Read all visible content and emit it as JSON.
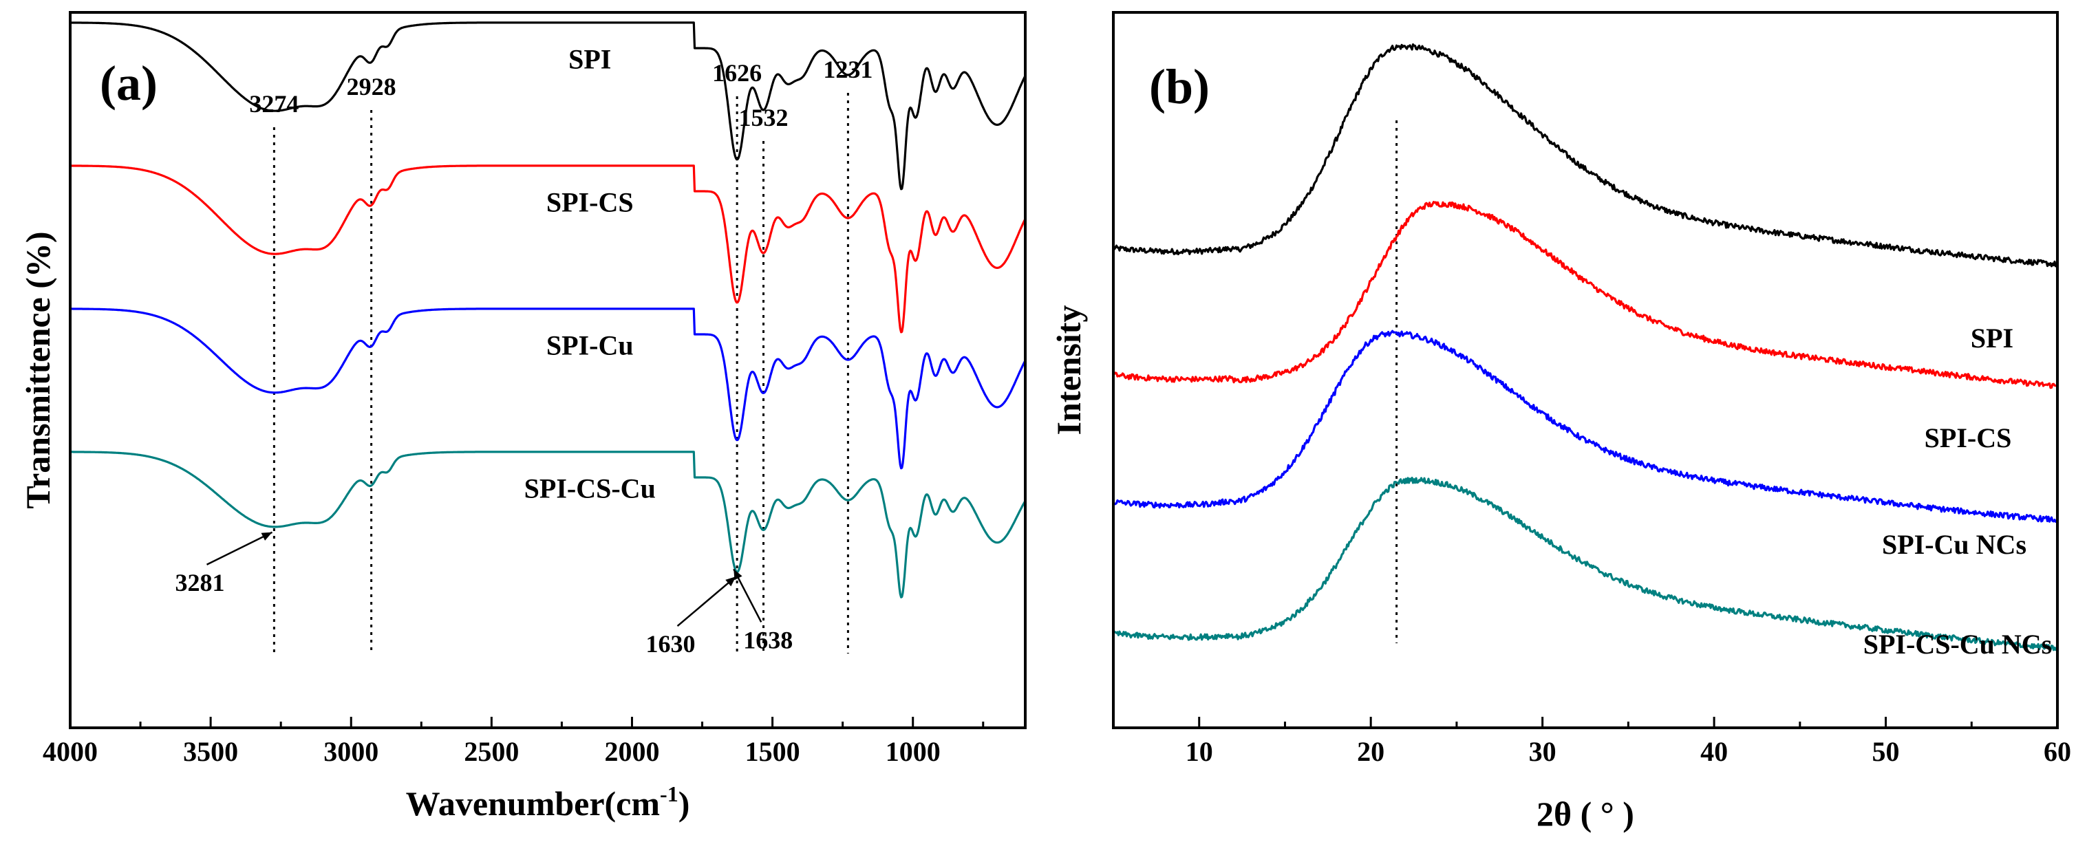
{
  "chart_data": [
    {
      "panel": "(a)",
      "type": "line",
      "xlabel": "Wavenumber(cm",
      "xlabel_sup": "-1",
      "xlabel_end": ")",
      "ylabel": "Transmittence (%)",
      "xlim": [
        4000,
        600
      ],
      "xticks": [
        4000,
        3500,
        3000,
        2500,
        2000,
        1500,
        1000
      ],
      "reference_lines": [
        {
          "x": 3274,
          "label": "3274"
        },
        {
          "x": 2928,
          "label": "2928"
        },
        {
          "x": 1626,
          "label": "1626"
        },
        {
          "x": 1532,
          "label": "1532"
        },
        {
          "x": 1231,
          "label": "1231"
        }
      ],
      "arrow_annotations": [
        {
          "x": 3281,
          "label": "3281",
          "series": "SPI-CS-Cu"
        },
        {
          "x": 1630,
          "label": "1630",
          "series": "SPI-CS-Cu"
        },
        {
          "x": 1638,
          "label": "1638",
          "series": "SPI-CS-Cu"
        }
      ],
      "series": [
        {
          "name": "SPI",
          "color": "#000000",
          "baseline": 5.3,
          "bandScale": 1.0
        },
        {
          "name": "SPI-CS",
          "color": "#ff0000",
          "baseline": 3.9,
          "bandScale": 1.0
        },
        {
          "name": "SPI-Cu",
          "color": "#0000ff",
          "baseline": 2.5,
          "bandScale": 0.95
        },
        {
          "name": "SPI-CS-Cu",
          "color": "#008080",
          "baseline": 1.1,
          "bandScale": 0.85
        }
      ],
      "bands": [
        {
          "center": 3274,
          "width": 190,
          "depth": 1.15
        },
        {
          "center": 3075,
          "width": 60,
          "depth": 0.35
        },
        {
          "center": 2928,
          "width": 22,
          "depth": 0.28
        },
        {
          "center": 2870,
          "width": 18,
          "depth": 0.18
        },
        {
          "center": 1626,
          "width": 28,
          "depth": 1.45
        },
        {
          "center": 1532,
          "width": 28,
          "depth": 0.8
        },
        {
          "center": 1450,
          "width": 25,
          "depth": 0.4
        },
        {
          "center": 1395,
          "width": 28,
          "depth": 0.35
        },
        {
          "center": 1231,
          "width": 38,
          "depth": 0.35
        },
        {
          "center": 1080,
          "width": 20,
          "depth": 0.75
        },
        {
          "center": 1040,
          "width": 15,
          "depth": 1.7
        },
        {
          "center": 990,
          "width": 20,
          "depth": 0.9
        },
        {
          "center": 920,
          "width": 18,
          "depth": 0.55
        },
        {
          "center": 860,
          "width": 22,
          "depth": 0.45
        },
        {
          "center": 700,
          "width": 70,
          "depth": 1.0
        }
      ]
    },
    {
      "panel": "(b)",
      "type": "line",
      "xlabel": "2θ ( ° )",
      "ylabel": "Intensity",
      "xlim": [
        5,
        60
      ],
      "xticks": [
        10,
        20,
        30,
        40,
        50,
        60
      ],
      "reference_lines": [
        {
          "x": 21.5
        }
      ],
      "series": [
        {
          "name": "SPI",
          "color": "#000000",
          "label": "SPI",
          "offset": 3.55,
          "peakCenter": 21.5,
          "amp": 1.75
        },
        {
          "name": "SPI-CS",
          "color": "#ff0000",
          "label": "SPI-CS",
          "offset": 2.4,
          "peakCenter": 23.5,
          "amp": 1.45
        },
        {
          "name": "SPI-Cu NCs",
          "color": "#0000ff",
          "label": "SPI-Cu NCs",
          "offset": 1.2,
          "peakCenter": 20.8,
          "amp": 1.45
        },
        {
          "name": "SPI-CS-Cu NCs",
          "color": "#008080",
          "label": "SPI-CS-Cu NCs",
          "offset": 0.0,
          "peakCenter": 22.0,
          "amp": 1.3
        }
      ]
    }
  ]
}
